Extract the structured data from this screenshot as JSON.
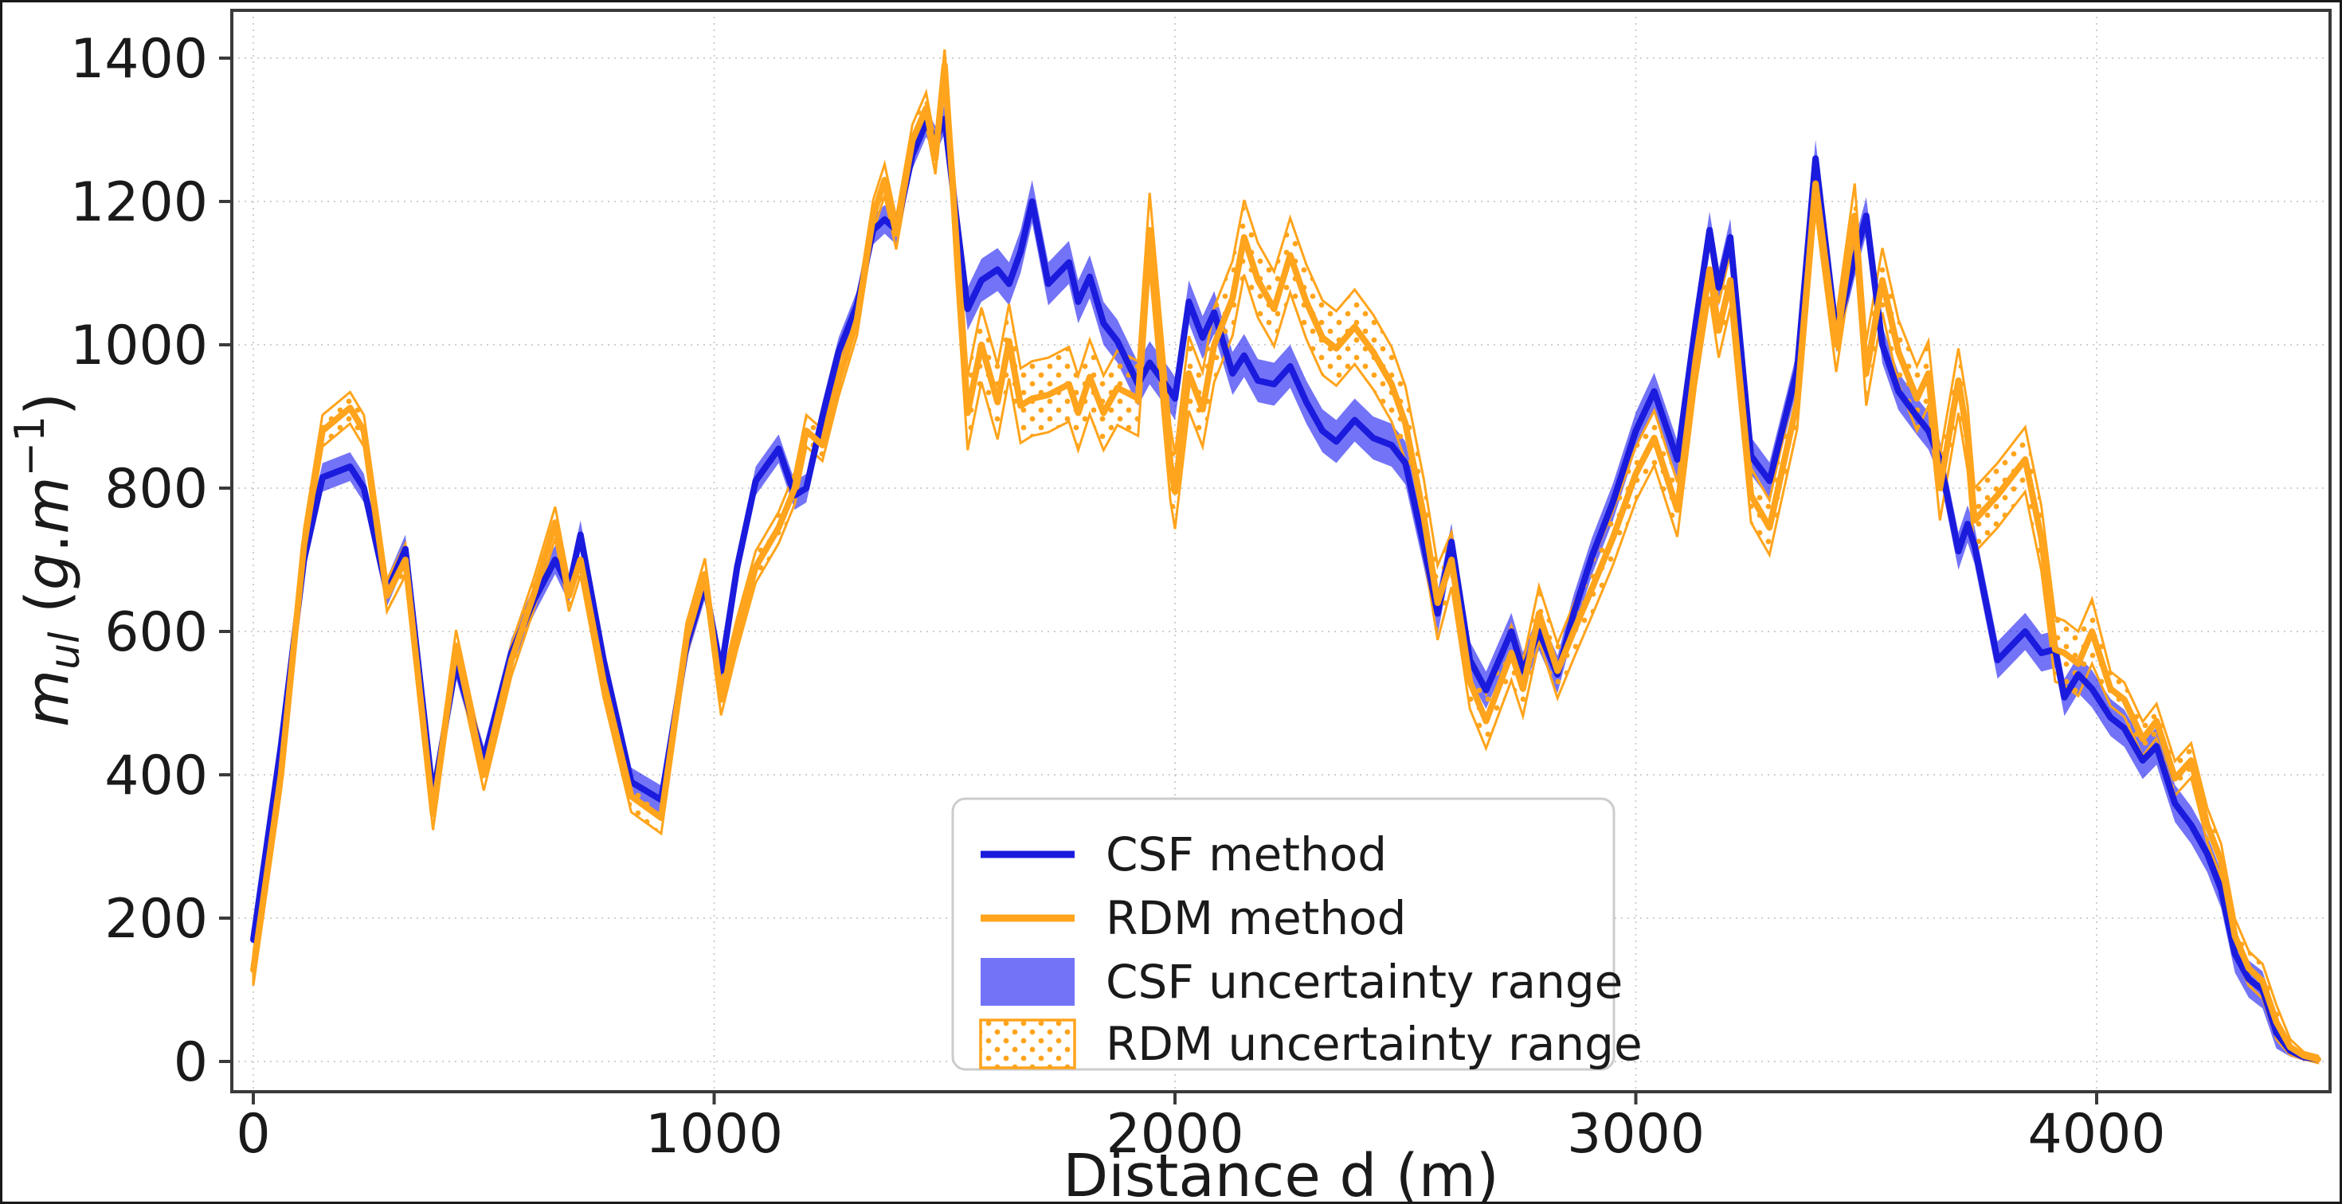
{
  "figure": {
    "xlabel": "Distance d (m)",
    "ylabel_parts": [
      {
        "t": "m",
        "italic": true
      },
      {
        "t": "ul",
        "italic": true,
        "sub": true
      },
      {
        "t": " (",
        "italic": false
      },
      {
        "t": "g",
        "italic": true
      },
      {
        "t": ".",
        "italic": false
      },
      {
        "t": "m",
        "italic": true
      },
      {
        "t": "−1",
        "italic": false,
        "sup": true
      },
      {
        "t": ")",
        "italic": false
      }
    ],
    "colors": {
      "csf_line": "#1b1bdd",
      "csf_band": "#0000f0",
      "csf_band_opacity": 0.55,
      "rdm_line": "#ffa41c",
      "grid": "#cfcfcf",
      "spine": "#3a3a3a",
      "text": "#1a1a1a",
      "legend_border": "#cccccc"
    }
  },
  "legend": {
    "items": [
      {
        "label": "CSF method",
        "swatch": "blue-line"
      },
      {
        "label": "RDM method",
        "swatch": "orange-line"
      },
      {
        "label": "CSF uncertainty range",
        "swatch": "blue-fill"
      },
      {
        "label": "RDM uncertainty range",
        "swatch": "orange-dotted-fill"
      }
    ]
  },
  "chart_data": {
    "type": "line",
    "title": "",
    "xlabel": "Distance d (m)",
    "ylabel": "m_ul (g.m^-1)",
    "xlim": [
      -47,
      4506
    ],
    "ylim": [
      -42,
      1467
    ],
    "xticks": [
      0,
      1000,
      2000,
      3000,
      4000
    ],
    "yticks": [
      0,
      200,
      400,
      600,
      800,
      1000,
      1200,
      1400
    ],
    "grid": true,
    "legend_position": "lower center",
    "x": [
      0,
      60,
      110,
      150,
      210,
      240,
      290,
      330,
      390,
      440,
      500,
      560,
      610,
      655,
      685,
      710,
      760,
      820,
      885,
      940,
      980,
      1015,
      1050,
      1090,
      1140,
      1175,
      1200,
      1235,
      1270,
      1310,
      1345,
      1370,
      1395,
      1430,
      1460,
      1480,
      1500,
      1525,
      1550,
      1580,
      1615,
      1640,
      1665,
      1690,
      1725,
      1770,
      1790,
      1815,
      1845,
      1875,
      1920,
      1945,
      1990,
      2000,
      2030,
      2060,
      2085,
      2125,
      2150,
      2180,
      2215,
      2250,
      2285,
      2320,
      2350,
      2390,
      2430,
      2470,
      2500,
      2540,
      2570,
      2600,
      2640,
      2675,
      2730,
      2755,
      2790,
      2830,
      2865,
      2905,
      2950,
      3000,
      3040,
      3090,
      3130,
      3160,
      3180,
      3205,
      3250,
      3290,
      3350,
      3390,
      3435,
      3475,
      3500,
      3535,
      3570,
      3610,
      3635,
      3660,
      3700,
      3720,
      3735,
      3785,
      3845,
      3880,
      3910,
      3930,
      3960,
      3990,
      4030,
      4060,
      4100,
      4130,
      4170,
      4205,
      4240,
      4270,
      4300,
      4330,
      4360,
      4390,
      4420,
      4450,
      4480
    ],
    "series": [
      {
        "name": "CSF method",
        "values": [
          170,
          440,
          700,
          815,
          830,
          800,
          655,
          715,
          370,
          555,
          420,
          570,
          645,
          700,
          660,
          735,
          560,
          390,
          365,
          580,
          665,
          545,
          690,
          810,
          855,
          790,
          800,
          900,
          990,
          1055,
          1160,
          1175,
          1160,
          1265,
          1310,
          1285,
          1315,
          1180,
          1050,
          1090,
          1105,
          1085,
          1130,
          1200,
          1085,
          1115,
          1060,
          1095,
          1030,
          1005,
          945,
          975,
          935,
          925,
          1060,
          1010,
          1045,
          960,
          985,
          950,
          945,
          970,
          920,
          880,
          865,
          895,
          870,
          860,
          835,
          720,
          625,
          725,
          560,
          518,
          600,
          545,
          600,
          540,
          625,
          705,
          780,
          880,
          935,
          840,
          1030,
          1160,
          1080,
          1150,
          845,
          810,
          965,
          1260,
          1015,
          1120,
          1180,
          1000,
          935,
          900,
          880,
          840,
          712,
          750,
          720,
          560,
          600,
          570,
          575,
          508,
          540,
          520,
          480,
          465,
          420,
          440,
          360,
          330,
          290,
          240,
          150,
          115,
          100,
          40,
          15,
          6,
          3
        ],
        "band_ranges": [
          {
            "from": -100,
            "to": 1520,
            "hw": 20
          },
          {
            "from": 1520,
            "to": 2600,
            "hw": 30
          },
          {
            "from": 2600,
            "to": 4600,
            "hw": 26
          }
        ]
      },
      {
        "name": "RDM method",
        "values": [
          128,
          400,
          720,
          880,
          912,
          880,
          650,
          700,
          345,
          580,
          400,
          560,
          655,
          752,
          650,
          700,
          530,
          370,
          340,
          590,
          680,
          505,
          597,
          690,
          745,
          800,
          880,
          860,
          950,
          1035,
          1180,
          1230,
          1155,
          1285,
          1330,
          1260,
          1390,
          1150,
          905,
          1000,
          920,
          1005,
          915,
          925,
          930,
          945,
          905,
          955,
          905,
          940,
          925,
          1160,
          835,
          795,
          960,
          910,
          1000,
          1065,
          1150,
          1090,
          1050,
          1125,
          1060,
          1010,
          995,
          1025,
          990,
          945,
          890,
          760,
          640,
          700,
          530,
          475,
          570,
          520,
          625,
          545,
          600,
          660,
          730,
          820,
          870,
          770,
          980,
          1105,
          1020,
          1090,
          790,
          745,
          920,
          1225,
          1000,
          1180,
          960,
          1090,
          990,
          925,
          960,
          800,
          950,
          870,
          755,
          790,
          840,
          730,
          575,
          570,
          555,
          600,
          520,
          505,
          450,
          475,
          395,
          420,
          330,
          280,
          175,
          130,
          112,
          55,
          20,
          8,
          3
        ],
        "band_ranges": [
          {
            "from": -100,
            "to": 1520,
            "hw": 22
          },
          {
            "from": 1520,
            "to": 2600,
            "hw": 52
          },
          {
            "from": 2600,
            "to": 3450,
            "hw": 38
          },
          {
            "from": 3450,
            "to": 4030,
            "hw": 45
          },
          {
            "from": 4030,
            "to": 4600,
            "hw": 24
          }
        ]
      }
    ]
  }
}
